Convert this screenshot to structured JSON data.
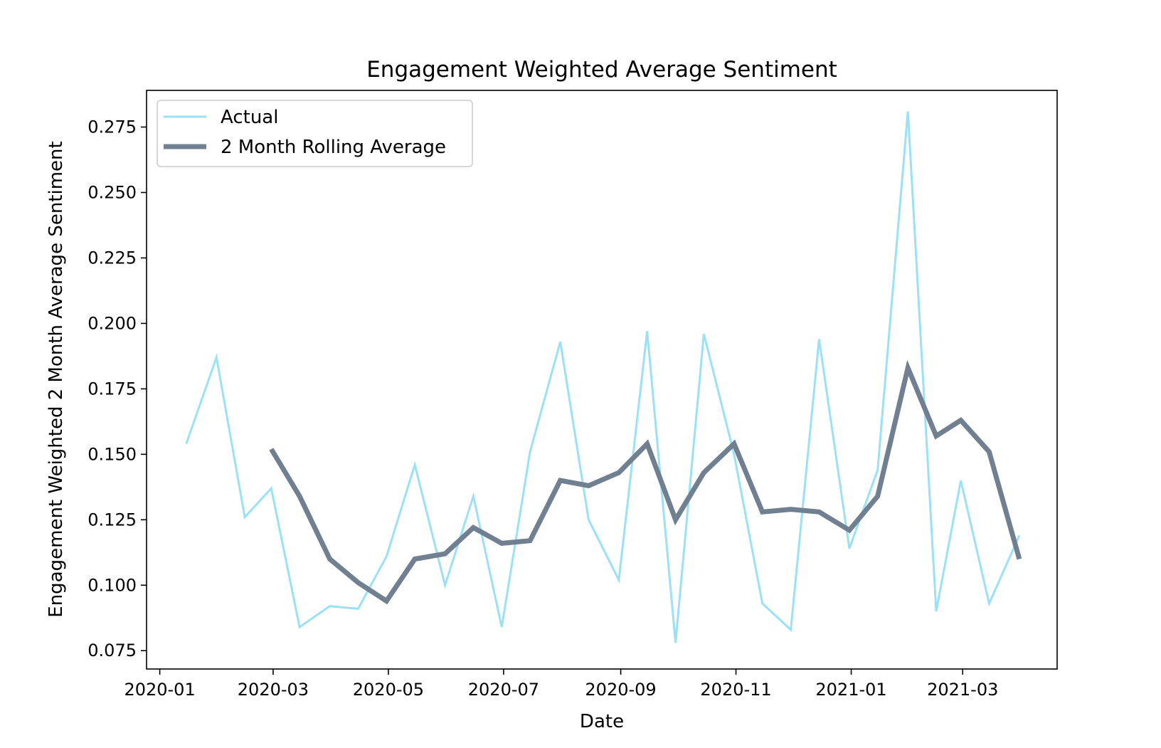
{
  "chart_data": {
    "type": "line",
    "title": "Engagement Weighted Average Sentiment",
    "xlabel": "Date",
    "ylabel": "Engagement Weighted 2 Month Average Sentiment",
    "x_tick_labels": [
      "2020-01",
      "2020-03",
      "2020-05",
      "2020-07",
      "2020-09",
      "2020-11",
      "2021-01",
      "2021-03"
    ],
    "x_tick_dates": [
      "2020-01-01",
      "2020-03-01",
      "2020-05-01",
      "2020-07-01",
      "2020-09-01",
      "2020-11-01",
      "2021-01-01",
      "2021-03-01"
    ],
    "y_ticks": [
      0.075,
      0.1,
      0.125,
      0.15,
      0.175,
      0.2,
      0.225,
      0.25,
      0.275
    ],
    "y_tick_labels": [
      "0.075",
      "0.100",
      "0.125",
      "0.150",
      "0.175",
      "0.200",
      "0.225",
      "0.250",
      "0.275"
    ],
    "xlim": [
      "2019-12-25",
      "2021-04-20"
    ],
    "ylim": [
      0.068,
      0.289
    ],
    "grid": false,
    "legend_position": "top-left",
    "x": [
      "2020-01-15",
      "2020-01-31",
      "2020-02-15",
      "2020-02-29",
      "2020-03-15",
      "2020-03-31",
      "2020-04-15",
      "2020-04-30",
      "2020-05-15",
      "2020-05-31",
      "2020-06-15",
      "2020-06-30",
      "2020-07-15",
      "2020-07-31",
      "2020-08-15",
      "2020-08-31",
      "2020-09-15",
      "2020-09-30",
      "2020-10-15",
      "2020-10-31",
      "2020-11-15",
      "2020-11-30",
      "2020-12-15",
      "2020-12-31",
      "2021-01-15",
      "2021-01-31",
      "2021-02-15",
      "2021-02-28",
      "2021-03-15",
      "2021-03-31"
    ],
    "series": [
      {
        "name": "Actual",
        "color": "#9ae1f7",
        "values": [
          0.154,
          0.187,
          0.126,
          0.137,
          0.084,
          0.092,
          0.091,
          0.111,
          0.146,
          0.1,
          0.134,
          0.084,
          0.151,
          0.193,
          0.125,
          0.102,
          0.197,
          0.078,
          0.196,
          0.15,
          0.093,
          0.083,
          0.194,
          0.114,
          0.144,
          0.281,
          0.09,
          0.14,
          0.093,
          0.119
        ]
      },
      {
        "name": "2 Month Rolling Average",
        "color": "#708090",
        "values": [
          null,
          null,
          null,
          0.152,
          0.134,
          0.11,
          0.101,
          0.094,
          0.11,
          0.112,
          0.122,
          0.116,
          0.117,
          0.14,
          0.138,
          0.143,
          0.154,
          0.125,
          0.143,
          0.154,
          0.128,
          0.129,
          0.128,
          0.121,
          0.134,
          0.183,
          0.157,
          0.163,
          0.151,
          0.11
        ]
      }
    ]
  }
}
